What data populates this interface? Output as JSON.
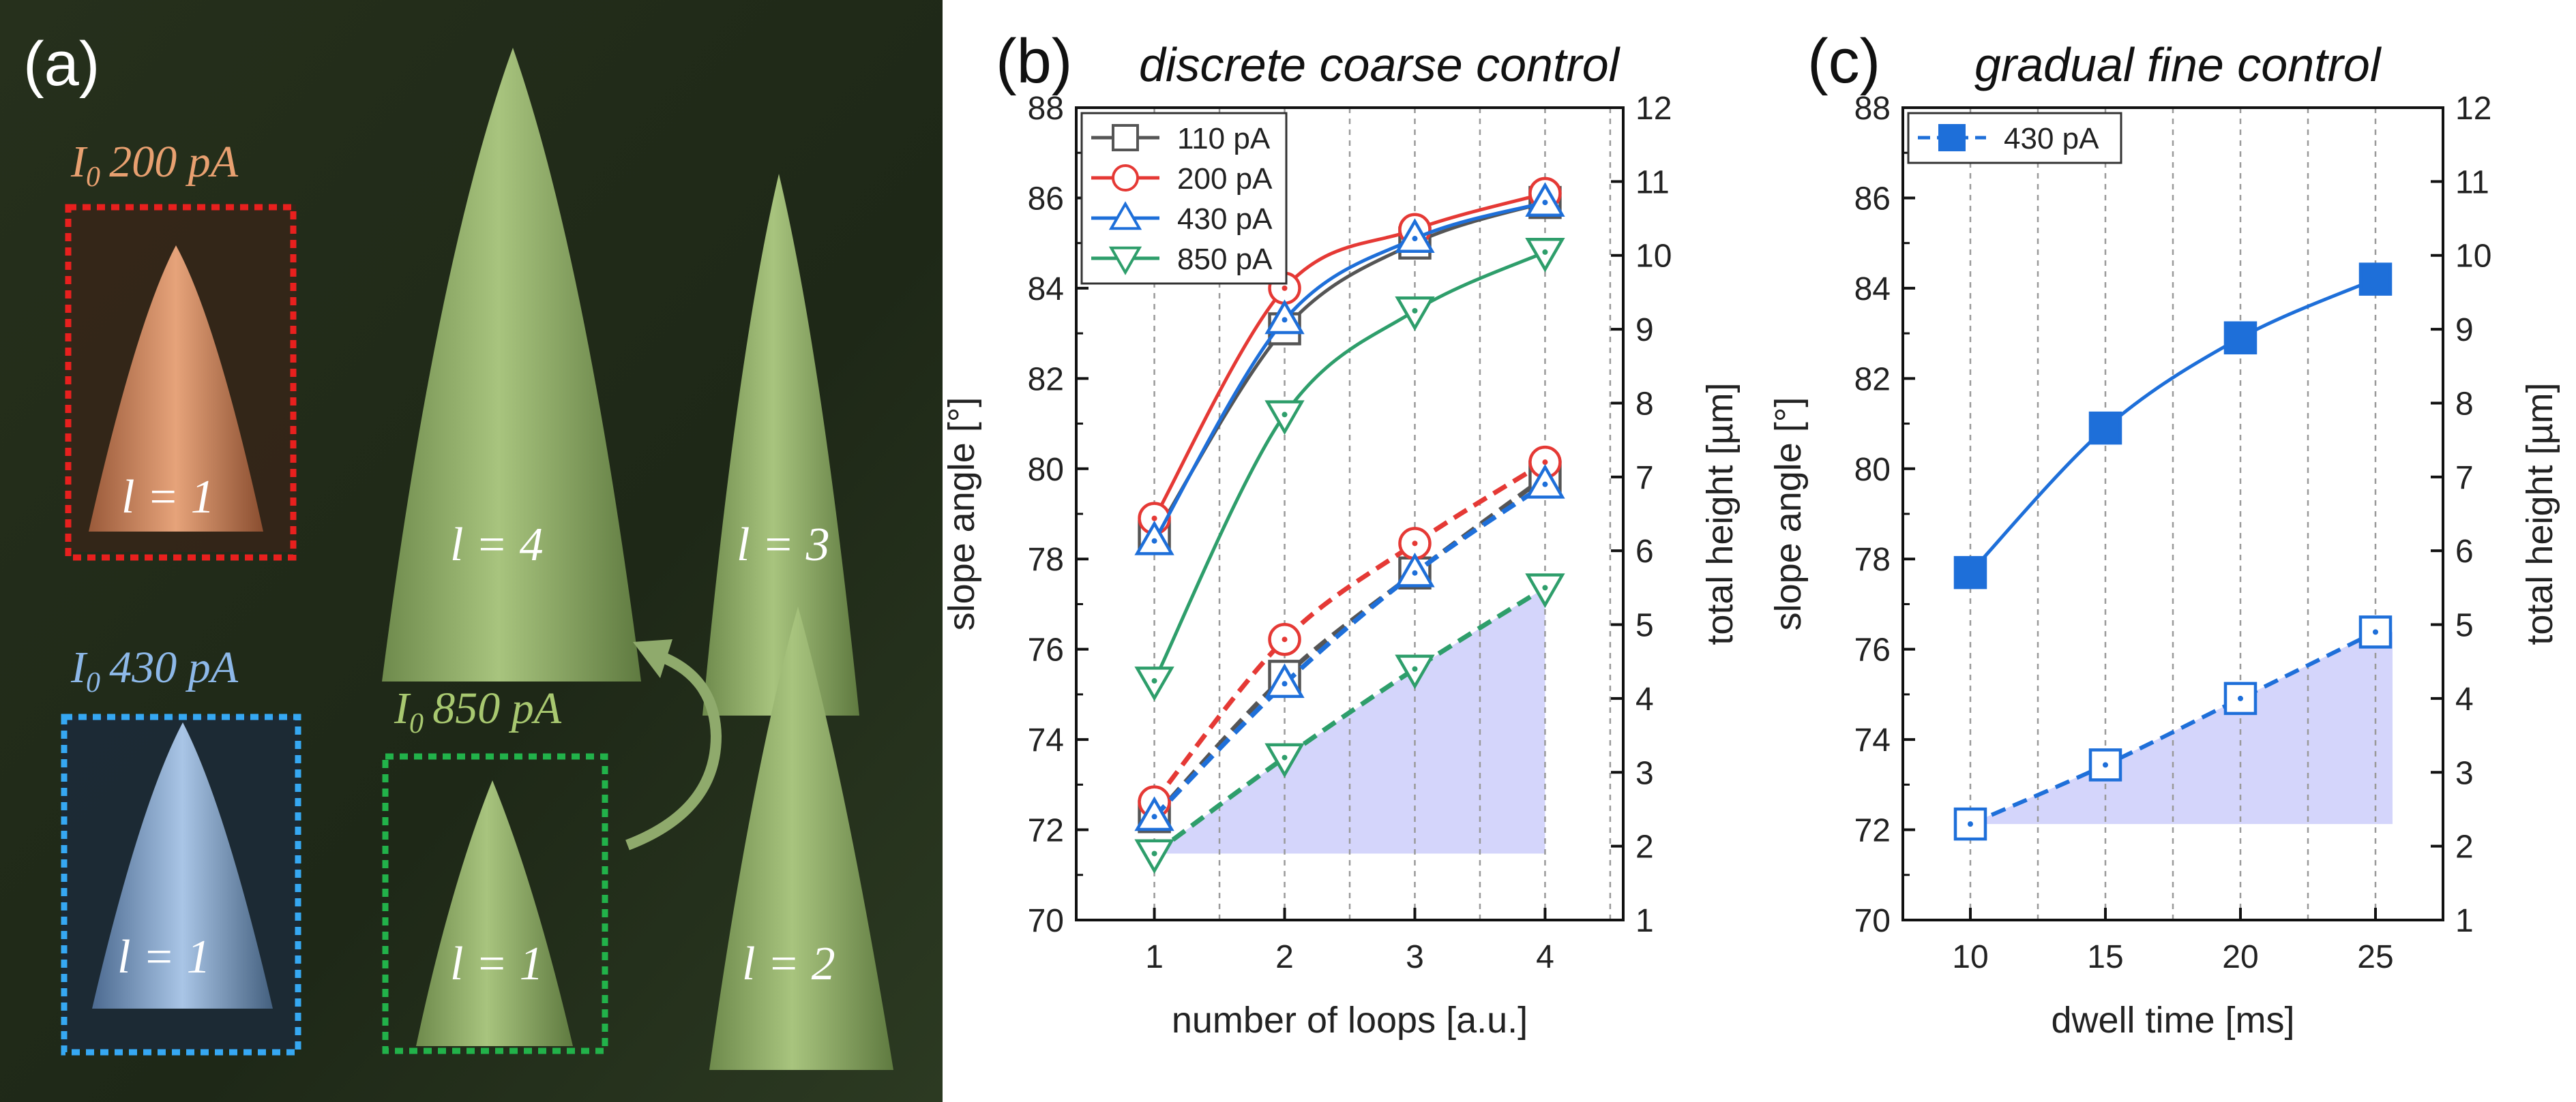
{
  "panel_a": {
    "label": "(a)",
    "current_prefix": "I",
    "current_subscript": "0",
    "current_labels": [
      {
        "value": "200 pA",
        "color": "#e8a070"
      },
      {
        "value": "430 pA",
        "color": "#8db8e8"
      },
      {
        "value": "850 pA",
        "color": "#a8c870"
      }
    ],
    "loop_labels": [
      "l = 1",
      "l = 4",
      "l = 3",
      "l = 1",
      "l = 1",
      "l = 2"
    ]
  },
  "chart_data": [
    {
      "panel_label": "(b)",
      "type": "line",
      "title": "discrete coarse control",
      "xlabel": "number of loops [a.u.]",
      "ylabel": "slope angle [°]",
      "y2label": "total height [µm]",
      "x": [
        1,
        2,
        3,
        4
      ],
      "xticks": [
        1,
        2,
        3,
        4
      ],
      "xlim": [
        0.4,
        4.6
      ],
      "ylim": [
        70,
        88
      ],
      "yticks": [
        70,
        72,
        74,
        76,
        78,
        80,
        82,
        84,
        86,
        88
      ],
      "y2lim": [
        1,
        12
      ],
      "y2ticks": [
        1,
        2,
        3,
        4,
        5,
        6,
        7,
        8,
        9,
        10,
        11,
        12
      ],
      "legend_position": "top-left",
      "series": [
        {
          "name": "110 pA",
          "marker": "square",
          "color": "#555555",
          "slope_angle": [
            78.5,
            83.1,
            85.0,
            85.9
          ],
          "total_height": [
            2.4,
            4.3,
            5.7,
            7.0
          ]
        },
        {
          "name": "200 pA",
          "marker": "circle",
          "color": "#e53935",
          "slope_angle": [
            78.9,
            84.0,
            85.3,
            86.1
          ],
          "total_height": [
            2.6,
            4.8,
            6.1,
            7.2
          ]
        },
        {
          "name": "430 pA",
          "marker": "triangle-up",
          "color": "#1e6fd9",
          "slope_angle": [
            78.4,
            83.3,
            85.1,
            85.9
          ],
          "total_height": [
            2.4,
            4.2,
            5.7,
            6.9
          ]
        },
        {
          "name": "850 pA",
          "marker": "triangle-down",
          "color": "#2e9e6b",
          "slope_angle": [
            75.3,
            81.2,
            83.5,
            84.8
          ],
          "total_height": [
            1.9,
            3.2,
            4.4,
            5.5
          ]
        }
      ]
    },
    {
      "panel_label": "(c)",
      "type": "line",
      "title": "gradual fine control",
      "xlabel": "dwell time [ms]",
      "ylabel": "slope angle [°]",
      "y2label": "total height [µm]",
      "x": [
        10,
        15,
        20,
        25
      ],
      "xticks": [
        10,
        15,
        20,
        25
      ],
      "xlim": [
        7.5,
        27.5
      ],
      "ylim": [
        70,
        88
      ],
      "yticks": [
        70,
        72,
        74,
        76,
        78,
        80,
        82,
        84,
        86,
        88
      ],
      "y2lim": [
        1,
        12
      ],
      "y2ticks": [
        1,
        2,
        3,
        4,
        5,
        6,
        7,
        8,
        9,
        10,
        11,
        12
      ],
      "legend_position": "top-left",
      "series": [
        {
          "name": "430 pA",
          "marker": "square",
          "color": "#1e6fd9",
          "slope_angle": [
            77.7,
            80.9,
            82.9,
            84.2
          ],
          "total_height": [
            2.3,
            3.1,
            4.0,
            4.9
          ]
        }
      ]
    }
  ]
}
